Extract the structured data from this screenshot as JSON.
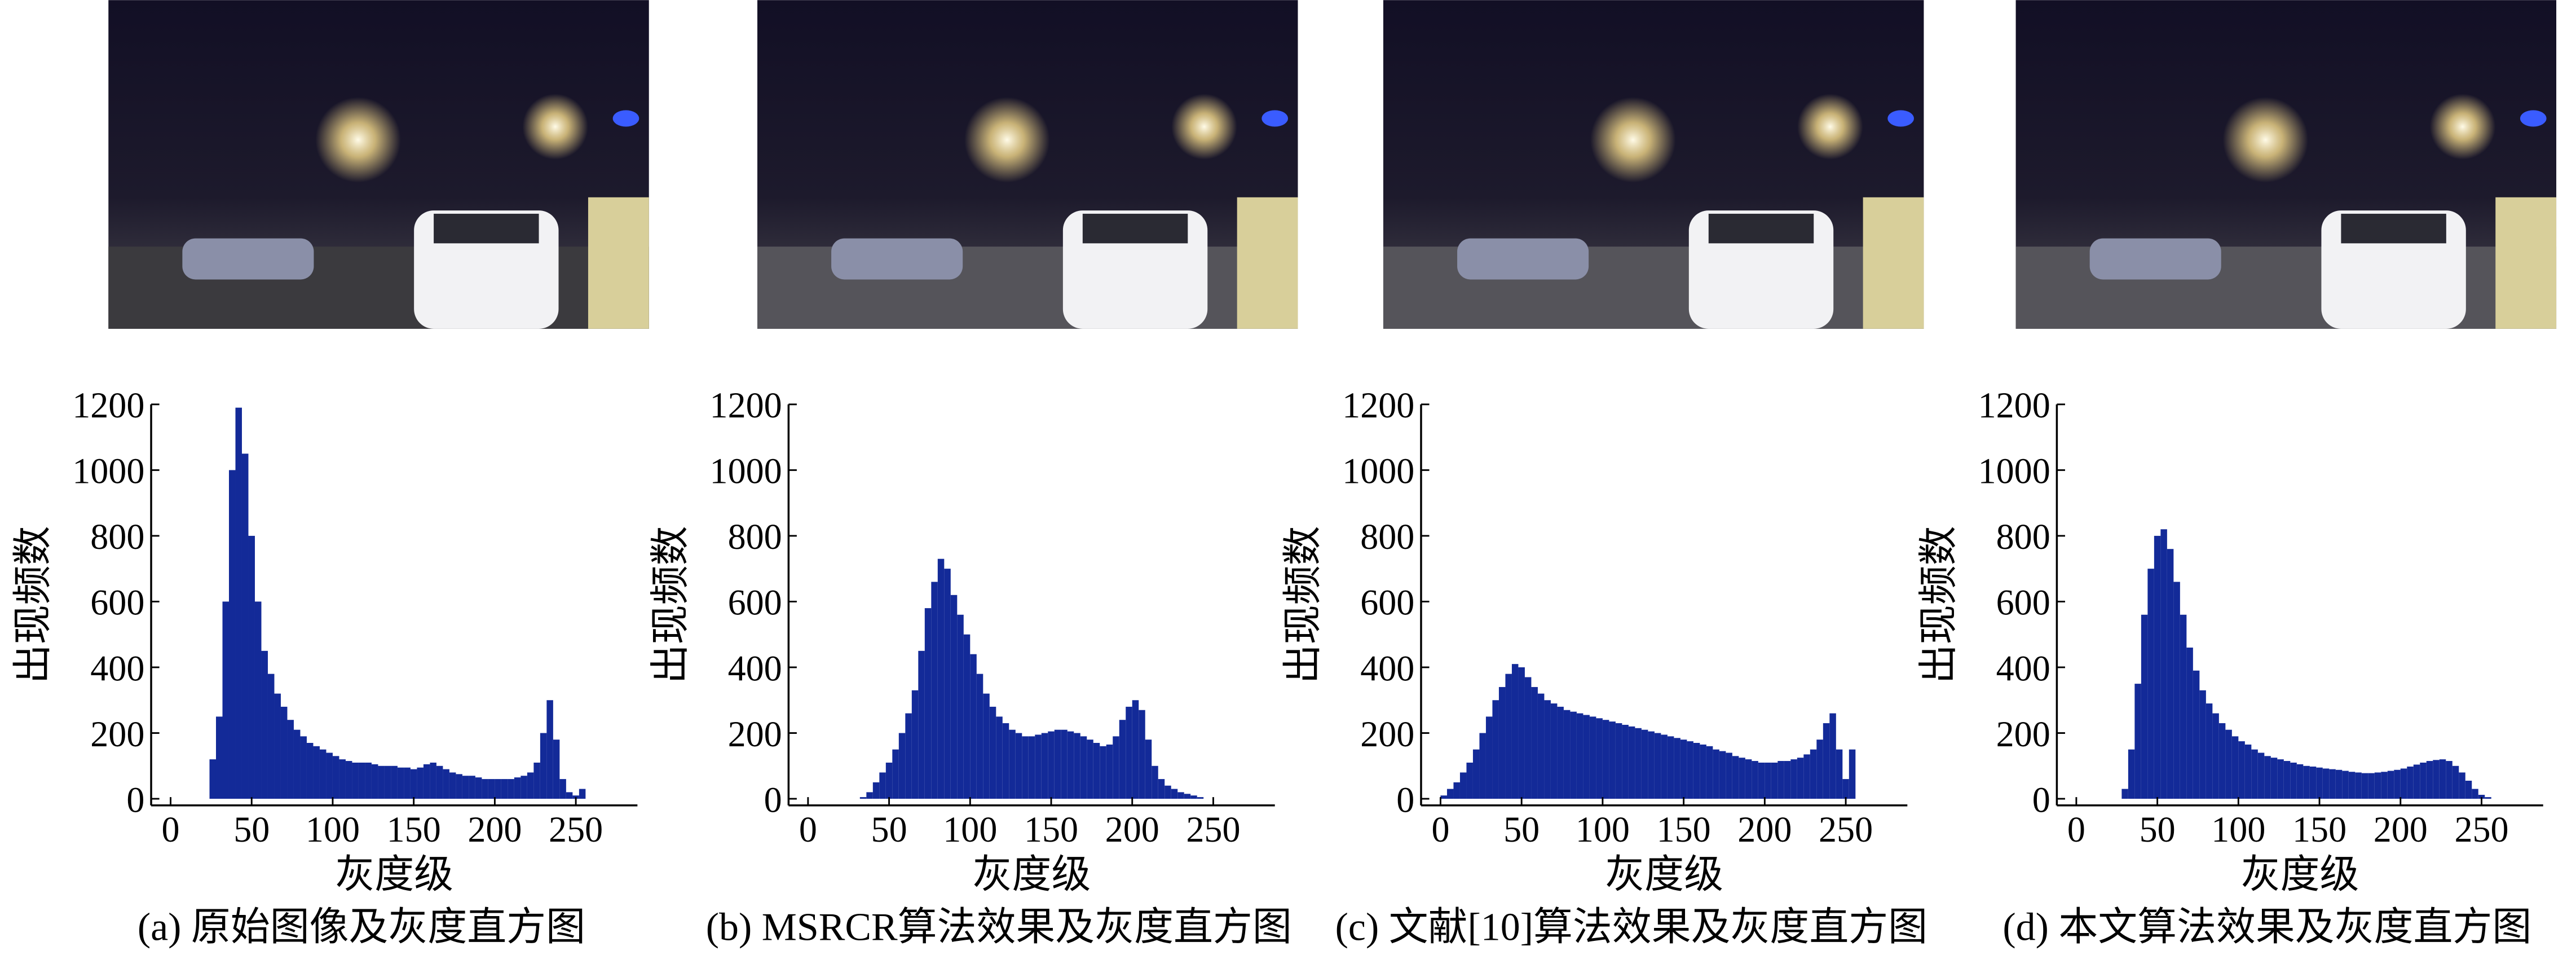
{
  "chart_data": [
    {
      "type": "histogram",
      "caption": "(a) 原始图像及灰度直方图",
      "xlabel": "灰度级",
      "ylabel": "出现频数",
      "color": "#132a98",
      "xlim": [
        -12,
        288
      ],
      "ylim": [
        -20,
        1200
      ],
      "xticks": [
        0,
        50,
        100,
        150,
        200,
        250
      ],
      "yticks": [
        0,
        200,
        400,
        600,
        800,
        1000,
        1200
      ],
      "bins": [
        0,
        4,
        8,
        12,
        16,
        20,
        24,
        28,
        32,
        36,
        40,
        44,
        48,
        52,
        56,
        60,
        64,
        68,
        72,
        76,
        80,
        84,
        88,
        92,
        96,
        100,
        104,
        108,
        112,
        116,
        120,
        124,
        128,
        132,
        136,
        140,
        144,
        148,
        152,
        156,
        160,
        164,
        168,
        172,
        176,
        180,
        184,
        188,
        192,
        196,
        200,
        204,
        208,
        212,
        216,
        220,
        224,
        228,
        232,
        236,
        240,
        244,
        248,
        252,
        256
      ],
      "values": [
        0,
        0,
        0,
        0,
        0,
        0,
        120,
        250,
        600,
        1000,
        1190,
        1050,
        800,
        600,
        450,
        380,
        320,
        280,
        240,
        210,
        190,
        170,
        160,
        150,
        140,
        130,
        120,
        115,
        110,
        110,
        110,
        105,
        100,
        100,
        100,
        95,
        95,
        90,
        95,
        105,
        110,
        100,
        90,
        80,
        75,
        70,
        70,
        65,
        60,
        60,
        60,
        60,
        60,
        65,
        70,
        80,
        110,
        200,
        300,
        180,
        60,
        20,
        10,
        30
      ]
    },
    {
      "type": "histogram",
      "caption": "(b) MSRCR算法效果及灰度直方图",
      "xlabel": "灰度级",
      "ylabel": "出现频数",
      "color": "#132a98",
      "xlim": [
        -12,
        288
      ],
      "ylim": [
        -20,
        1200
      ],
      "xticks": [
        0,
        50,
        100,
        150,
        200,
        250
      ],
      "yticks": [
        0,
        200,
        400,
        600,
        800,
        1000,
        1200
      ],
      "bins": [
        0,
        4,
        8,
        12,
        16,
        20,
        24,
        28,
        32,
        36,
        40,
        44,
        48,
        52,
        56,
        60,
        64,
        68,
        72,
        76,
        80,
        84,
        88,
        92,
        96,
        100,
        104,
        108,
        112,
        116,
        120,
        124,
        128,
        132,
        136,
        140,
        144,
        148,
        152,
        156,
        160,
        164,
        168,
        172,
        176,
        180,
        184,
        188,
        192,
        196,
        200,
        204,
        208,
        212,
        216,
        220,
        224,
        228,
        232,
        236,
        240,
        244,
        248,
        252,
        256
      ],
      "values": [
        0,
        0,
        0,
        0,
        0,
        0,
        0,
        0,
        5,
        20,
        50,
        80,
        110,
        150,
        200,
        260,
        330,
        450,
        580,
        660,
        730,
        700,
        620,
        560,
        500,
        440,
        380,
        320,
        280,
        250,
        230,
        210,
        200,
        190,
        190,
        195,
        200,
        205,
        210,
        210,
        205,
        200,
        190,
        180,
        170,
        160,
        165,
        190,
        240,
        280,
        300,
        270,
        180,
        100,
        60,
        40,
        30,
        20,
        15,
        10,
        5,
        0,
        0,
        0
      ]
    },
    {
      "type": "histogram",
      "caption": "(c) 文献[10]算法效果及灰度直方图",
      "xlabel": "灰度级",
      "ylabel": "出现频数",
      "color": "#132a98",
      "xlim": [
        -12,
        288
      ],
      "ylim": [
        -20,
        1200
      ],
      "xticks": [
        0,
        50,
        100,
        150,
        200,
        250
      ],
      "yticks": [
        0,
        200,
        400,
        600,
        800,
        1000,
        1200
      ],
      "bins": [
        0,
        4,
        8,
        12,
        16,
        20,
        24,
        28,
        32,
        36,
        40,
        44,
        48,
        52,
        56,
        60,
        64,
        68,
        72,
        76,
        80,
        84,
        88,
        92,
        96,
        100,
        104,
        108,
        112,
        116,
        120,
        124,
        128,
        132,
        136,
        140,
        144,
        148,
        152,
        156,
        160,
        164,
        168,
        172,
        176,
        180,
        184,
        188,
        192,
        196,
        200,
        204,
        208,
        212,
        216,
        220,
        224,
        228,
        232,
        236,
        240,
        244,
        248,
        252,
        256
      ],
      "values": [
        10,
        30,
        50,
        80,
        110,
        150,
        200,
        250,
        300,
        340,
        380,
        410,
        400,
        370,
        340,
        320,
        300,
        290,
        280,
        270,
        265,
        260,
        255,
        250,
        245,
        240,
        235,
        230,
        225,
        220,
        215,
        210,
        205,
        200,
        195,
        190,
        185,
        180,
        175,
        170,
        165,
        160,
        150,
        145,
        140,
        130,
        125,
        120,
        115,
        110,
        110,
        110,
        115,
        115,
        120,
        125,
        135,
        150,
        180,
        230,
        260,
        150,
        60,
        150
      ]
    },
    {
      "type": "histogram",
      "caption": "(d) 本文算法效果及灰度直方图",
      "xlabel": "灰度级",
      "ylabel": "出现频数",
      "color": "#132a98",
      "xlim": [
        -12,
        288
      ],
      "ylim": [
        -20,
        1200
      ],
      "xticks": [
        0,
        50,
        100,
        150,
        200,
        250
      ],
      "yticks": [
        0,
        200,
        400,
        600,
        800,
        1000,
        1200
      ],
      "bins": [
        0,
        4,
        8,
        12,
        16,
        20,
        24,
        28,
        32,
        36,
        40,
        44,
        48,
        52,
        56,
        60,
        64,
        68,
        72,
        76,
        80,
        84,
        88,
        92,
        96,
        100,
        104,
        108,
        112,
        116,
        120,
        124,
        128,
        132,
        136,
        140,
        144,
        148,
        152,
        156,
        160,
        164,
        168,
        172,
        176,
        180,
        184,
        188,
        192,
        196,
        200,
        204,
        208,
        212,
        216,
        220,
        224,
        228,
        232,
        236,
        240,
        244,
        248,
        252,
        256
      ],
      "values": [
        0,
        0,
        0,
        0,
        0,
        0,
        0,
        30,
        150,
        350,
        560,
        700,
        800,
        820,
        760,
        660,
        560,
        460,
        390,
        330,
        290,
        260,
        230,
        210,
        190,
        175,
        165,
        150,
        140,
        130,
        125,
        120,
        115,
        110,
        105,
        100,
        98,
        95,
        92,
        90,
        88,
        85,
        82,
        80,
        78,
        78,
        80,
        82,
        85,
        88,
        92,
        98,
        104,
        110,
        115,
        118,
        120,
        115,
        100,
        80,
        55,
        30,
        12,
        5
      ]
    }
  ]
}
